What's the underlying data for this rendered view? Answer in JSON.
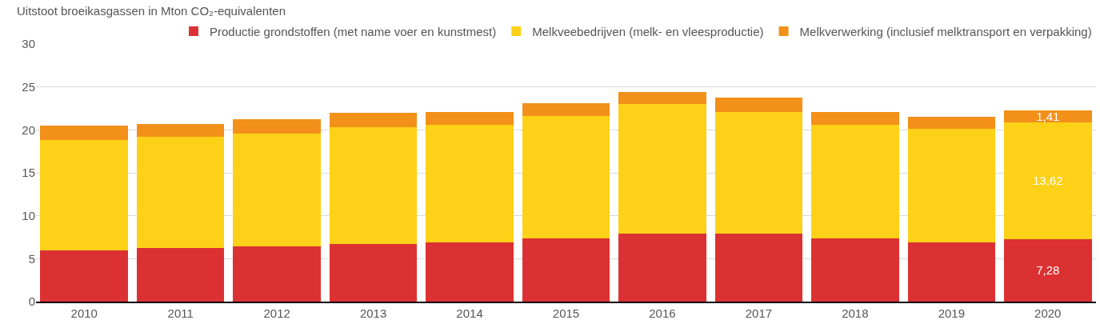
{
  "chart_data": {
    "type": "bar",
    "stacked": true,
    "ylabel": "Uitstoot broeikasgassen in Mton CO₂-equivalenten",
    "categories": [
      "2010",
      "2011",
      "2012",
      "2013",
      "2014",
      "2015",
      "2016",
      "2017",
      "2018",
      "2019",
      "2020"
    ],
    "series": [
      {
        "name": "Productie grondstoffen (met name voer en kunstmest)",
        "color": "#dc3132",
        "values": [
          6.0,
          6.2,
          6.4,
          6.7,
          6.9,
          7.4,
          7.9,
          7.9,
          7.4,
          6.9,
          7.28
        ],
        "value_labels": [
          null,
          null,
          null,
          null,
          null,
          null,
          null,
          null,
          null,
          null,
          "7,28"
        ]
      },
      {
        "name": "Melkveebedrijven (melk- en vleesproductie)",
        "color": "#fdd117",
        "values": [
          12.8,
          13.0,
          13.2,
          13.6,
          13.7,
          14.2,
          15.1,
          14.2,
          13.2,
          13.2,
          13.62
        ],
        "value_labels": [
          null,
          null,
          null,
          null,
          null,
          null,
          null,
          null,
          null,
          null,
          "13,62"
        ]
      },
      {
        "name": "Melkverwerking (inclusief melktransport en verpakking)",
        "color": "#f39019",
        "values": [
          1.7,
          1.5,
          1.6,
          1.7,
          1.5,
          1.5,
          1.4,
          1.7,
          1.5,
          1.4,
          1.41
        ],
        "value_labels": [
          null,
          null,
          null,
          null,
          null,
          null,
          null,
          null,
          null,
          null,
          "1,41"
        ]
      }
    ],
    "ylim": [
      0,
      30
    ],
    "yticks": [
      0,
      5,
      10,
      15,
      20,
      25,
      30
    ],
    "grid": "y",
    "legend": "top right"
  }
}
